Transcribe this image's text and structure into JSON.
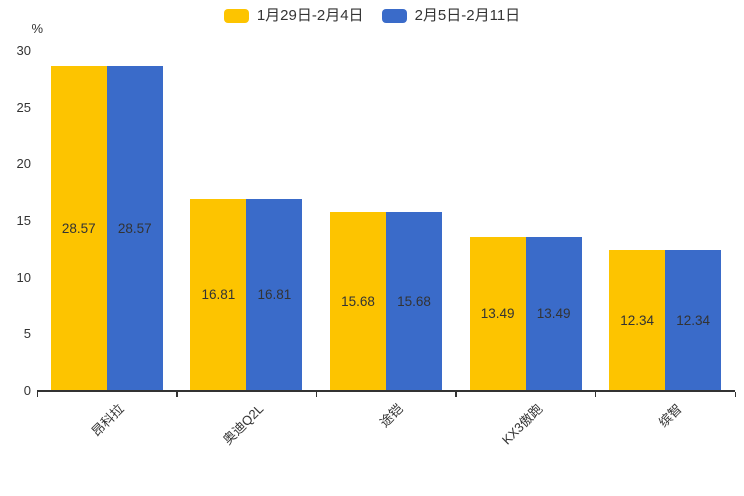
{
  "chart_data": {
    "type": "bar",
    "unit": "%",
    "categories": [
      "昂科拉",
      "奥迪Q2L",
      "途铠",
      "KX3傲跑",
      "缤智"
    ],
    "series": [
      {
        "name": "1月29日-2月4日",
        "color": "#FDC400",
        "values": [
          28.57,
          16.81,
          15.68,
          13.49,
          12.34
        ]
      },
      {
        "name": "2月5日-2月11日",
        "color": "#3A6BC9",
        "values": [
          28.57,
          16.81,
          15.68,
          13.49,
          12.34
        ]
      }
    ],
    "ylim": [
      0,
      30
    ],
    "yticks": [
      0,
      5,
      10,
      15,
      20,
      25,
      30
    ],
    "grid": false,
    "legend_position": "top-center",
    "value_labels": "inside-center",
    "value_label_format": "2-decimals"
  },
  "colors": {
    "text": "#333333",
    "axis": "#333333",
    "background": "#ffffff"
  }
}
